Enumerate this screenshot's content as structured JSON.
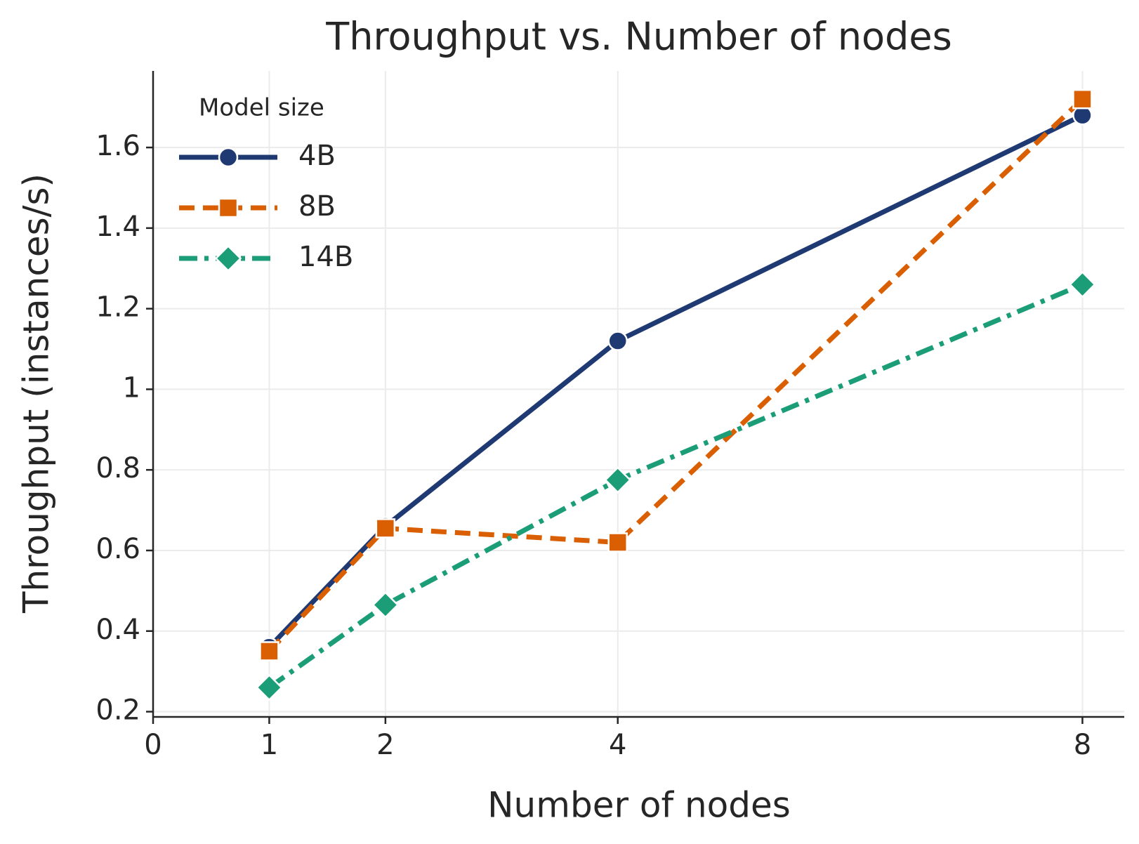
{
  "chart_data": {
    "type": "line",
    "title": "Throughput vs. Number of nodes",
    "x_label": "Number of nodes",
    "y_label": "Throughput (instances/s)",
    "legend_title": "Model size",
    "legend_position": "upper left",
    "grid": true,
    "x": [
      1,
      2,
      4,
      8
    ],
    "xlim": [
      0,
      8.36
    ],
    "xticks": [
      0,
      1,
      2,
      4,
      8
    ],
    "ylim": [
      0.187,
      1.79
    ],
    "yticks": [
      0.2,
      0.4,
      0.6,
      0.8,
      1.0,
      1.2,
      1.4,
      1.6
    ],
    "series": [
      {
        "name": "4B",
        "color": "#1f3a73",
        "marker": "circle",
        "dash": "solid",
        "values": [
          0.36,
          0.66,
          1.12,
          1.68
        ]
      },
      {
        "name": "8B",
        "color": "#d95f02",
        "marker": "square",
        "dash": "dashed",
        "values": [
          0.35,
          0.655,
          0.62,
          1.72
        ]
      },
      {
        "name": "14B",
        "color": "#1b9e77",
        "marker": "diamond",
        "dash": "dashdot",
        "values": [
          0.26,
          0.465,
          0.775,
          1.26
        ]
      }
    ]
  }
}
